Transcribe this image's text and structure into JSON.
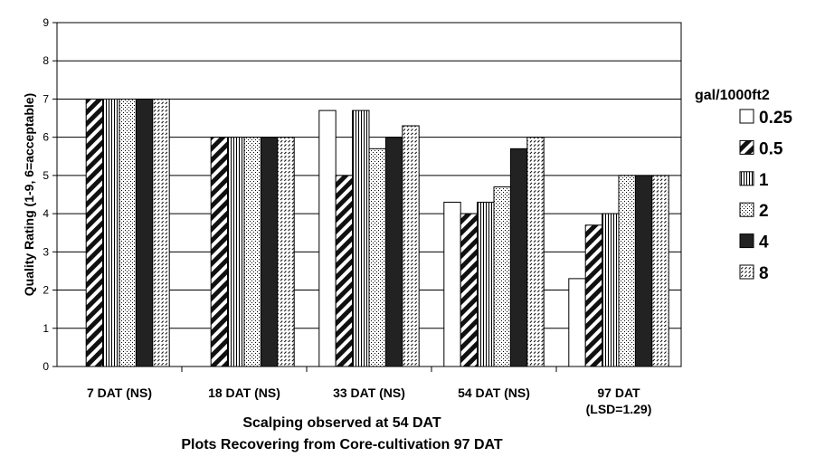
{
  "chart_data": {
    "type": "bar",
    "title": "",
    "xlabel": [
      "Scalping observed at 54 DAT",
      "Plots Recovering from Core-cultivation 97 DAT"
    ],
    "ylabel": "Quality Rating (1-9, 6=acceptable)",
    "ylim": [
      0,
      9
    ],
    "yticks": [
      0,
      1,
      2,
      3,
      4,
      5,
      6,
      7,
      8,
      9
    ],
    "grid": true,
    "legend_title": "gal/1000ft2",
    "legend_position": "right",
    "categories": [
      [
        "7 DAT (NS)"
      ],
      [
        "18 DAT (NS)"
      ],
      [
        "33 DAT (NS)"
      ],
      [
        "54 DAT (NS)"
      ],
      [
        "97 DAT",
        "(LSD=1.29)"
      ]
    ],
    "series": [
      {
        "name": "0.25",
        "pattern": "white",
        "values": [
          0,
          0,
          6.7,
          4.3,
          2.3
        ]
      },
      {
        "name": "0.5",
        "pattern": "wide-diagonal",
        "values": [
          7,
          6,
          5,
          4,
          3.7
        ]
      },
      {
        "name": "1",
        "pattern": "vertical",
        "values": [
          7,
          6,
          6.7,
          4.3,
          4
        ]
      },
      {
        "name": "2",
        "pattern": "dots",
        "values": [
          7,
          6,
          5.7,
          4.7,
          5
        ]
      },
      {
        "name": "4",
        "pattern": "solid-dark",
        "values": [
          7,
          6,
          6,
          5.7,
          5
        ]
      },
      {
        "name": "8",
        "pattern": "dashed-diagonal",
        "values": [
          7,
          6,
          6.3,
          6,
          5
        ]
      }
    ],
    "colors": {
      "bar_outline": "#000000",
      "dark_fill": "#222222",
      "background": "#ffffff"
    }
  }
}
